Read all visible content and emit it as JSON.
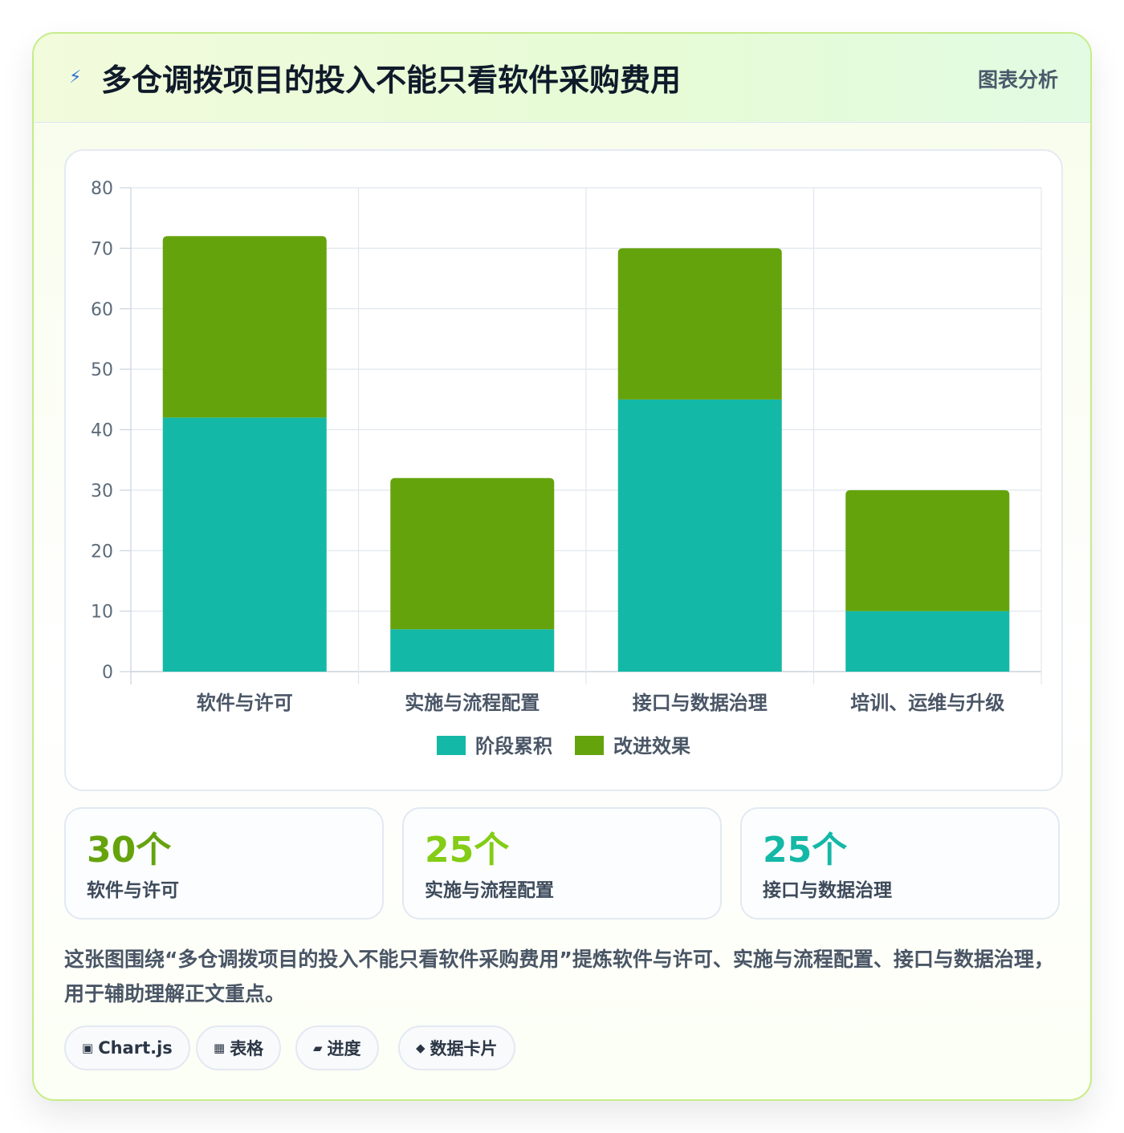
{
  "header": {
    "icon": "lightning-icon",
    "title": "多仓调拨项目的投入不能只看软件采购费用",
    "tag": "图表分析"
  },
  "chart_data": {
    "type": "bar",
    "stacked": true,
    "categories": [
      "软件与许可",
      "实施与流程配置",
      "接口与数据治理",
      "培训、运维与升级"
    ],
    "series": [
      {
        "name": "阶段累积",
        "color": "#14b8a6",
        "values": [
          42,
          7,
          45,
          10
        ]
      },
      {
        "name": "改进效果",
        "color": "#65a30d",
        "values": [
          30,
          25,
          25,
          20
        ]
      }
    ],
    "ylim": [
      0,
      80
    ],
    "yticks": [
      0,
      10,
      20,
      30,
      40,
      50,
      60,
      70,
      80
    ],
    "grid": true,
    "legend": "bottom"
  },
  "stats": [
    {
      "value": "30个",
      "label": "软件与许可",
      "color": "#65a30d"
    },
    {
      "value": "25个",
      "label": "实施与流程配置",
      "color": "#84cc16"
    },
    {
      "value": "25个",
      "label": "接口与数据治理",
      "color": "#14b8a6"
    }
  ],
  "description": "这张图围绕“多仓调拨项目的投入不能只看软件采购费用”提炼软件与许可、实施与流程配置、接口与数据治理，用于辅助理解正文重点。",
  "chips": [
    {
      "icon": "chart-icon",
      "glyph": "▣",
      "label": "Chart.js"
    },
    {
      "icon": "table-icon",
      "glyph": "▦",
      "label": "表格"
    },
    {
      "icon": "progress-icon",
      "glyph": "▰",
      "label": "进度"
    },
    {
      "icon": "data-card-icon",
      "glyph": "◆",
      "label": "数据卡片"
    }
  ]
}
